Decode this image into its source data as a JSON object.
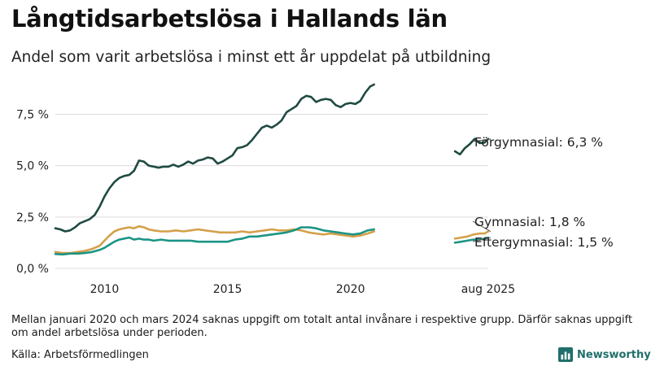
{
  "title": "Långtidsarbetslösa i Hallands län",
  "subtitle": "Andel som varit arbetslösa i minst ett år uppdelat på utbildning",
  "note": "Mellan januari 2020 och mars 2024 saknas uppgift om totalt antal invånare i respektive grupp. Därför saknas uppgift om andel arbetslösa under perioden.",
  "source": "Källa: Arbetsförmedlingen",
  "brand": {
    "name": "Newsworthy",
    "icon": "newsworthy-bar-chart-logo-icon",
    "color": "#1f6f6a"
  },
  "chart_data": {
    "type": "line",
    "ylim": [
      0,
      9.5
    ],
    "xlim": [
      2008.0,
      2026.0
    ],
    "grid": true,
    "y_ticks": [
      {
        "value": 0,
        "label": "0,0 %"
      },
      {
        "value": 2.5,
        "label": "2,5 %"
      },
      {
        "value": 5,
        "label": "5,0 %"
      },
      {
        "value": 7.5,
        "label": "7,5 %"
      }
    ],
    "x_ticks": [
      {
        "value": 2010,
        "label": "2010"
      },
      {
        "value": 2015,
        "label": "2015"
      },
      {
        "value": 2020,
        "label": "2020"
      },
      {
        "value": 2025.6,
        "label": "aug 2025"
      }
    ],
    "series": [
      {
        "name": "Förgymnasial",
        "end_label": "Förgymnasial: 6,3 %",
        "color": "#1f4a42",
        "segments": [
          [
            [
              2008.0,
              1.95
            ],
            [
              2008.2,
              1.9
            ],
            [
              2008.4,
              1.8
            ],
            [
              2008.6,
              1.85
            ],
            [
              2008.8,
              2.0
            ],
            [
              2009.0,
              2.2
            ],
            [
              2009.2,
              2.3
            ],
            [
              2009.4,
              2.4
            ],
            [
              2009.6,
              2.6
            ],
            [
              2009.8,
              3.0
            ],
            [
              2010.0,
              3.5
            ],
            [
              2010.2,
              3.9
            ],
            [
              2010.4,
              4.2
            ],
            [
              2010.6,
              4.4
            ],
            [
              2010.8,
              4.5
            ],
            [
              2011.0,
              4.55
            ],
            [
              2011.2,
              4.75
            ],
            [
              2011.4,
              5.25
            ],
            [
              2011.6,
              5.2
            ],
            [
              2011.8,
              5.0
            ],
            [
              2012.0,
              4.95
            ],
            [
              2012.2,
              4.9
            ],
            [
              2012.4,
              4.95
            ],
            [
              2012.6,
              4.95
            ],
            [
              2012.8,
              5.05
            ],
            [
              2013.0,
              4.95
            ],
            [
              2013.2,
              5.05
            ],
            [
              2013.4,
              5.2
            ],
            [
              2013.6,
              5.1
            ],
            [
              2013.8,
              5.25
            ],
            [
              2014.0,
              5.3
            ],
            [
              2014.2,
              5.4
            ],
            [
              2014.4,
              5.35
            ],
            [
              2014.6,
              5.1
            ],
            [
              2014.8,
              5.2
            ],
            [
              2015.0,
              5.35
            ],
            [
              2015.2,
              5.5
            ],
            [
              2015.4,
              5.85
            ],
            [
              2015.6,
              5.9
            ],
            [
              2015.8,
              6.0
            ],
            [
              2016.0,
              6.25
            ],
            [
              2016.2,
              6.55
            ],
            [
              2016.4,
              6.85
            ],
            [
              2016.6,
              6.95
            ],
            [
              2016.8,
              6.85
            ],
            [
              2017.0,
              7.0
            ],
            [
              2017.2,
              7.2
            ],
            [
              2017.4,
              7.6
            ],
            [
              2017.6,
              7.75
            ],
            [
              2017.8,
              7.9
            ],
            [
              2018.0,
              8.25
            ],
            [
              2018.2,
              8.4
            ],
            [
              2018.4,
              8.35
            ],
            [
              2018.6,
              8.1
            ],
            [
              2018.8,
              8.2
            ],
            [
              2019.0,
              8.25
            ],
            [
              2019.2,
              8.2
            ],
            [
              2019.4,
              7.95
            ],
            [
              2019.6,
              7.85
            ],
            [
              2019.8,
              8.0
            ],
            [
              2020.0,
              8.05
            ],
            [
              2020.2,
              8.0
            ],
            [
              2020.4,
              8.15
            ],
            [
              2020.6,
              8.55
            ],
            [
              2020.8,
              8.85
            ],
            [
              2020.96,
              8.95
            ]
          ],
          [
            [
              2024.25,
              5.7
            ],
            [
              2024.45,
              5.55
            ],
            [
              2024.65,
              5.85
            ],
            [
              2024.85,
              6.05
            ],
            [
              2025.05,
              6.3
            ],
            [
              2025.25,
              6.1
            ],
            [
              2025.45,
              6.12
            ],
            [
              2025.6,
              6.3
            ]
          ]
        ]
      },
      {
        "name": "Gymnasial",
        "end_label": "Gymnasial: 1,8 %",
        "color": "#d4a04a",
        "segments": [
          [
            [
              2008.0,
              0.8
            ],
            [
              2008.3,
              0.75
            ],
            [
              2008.6,
              0.75
            ],
            [
              2008.9,
              0.8
            ],
            [
              2009.2,
              0.85
            ],
            [
              2009.5,
              0.95
            ],
            [
              2009.8,
              1.1
            ],
            [
              2010.0,
              1.35
            ],
            [
              2010.2,
              1.6
            ],
            [
              2010.4,
              1.8
            ],
            [
              2010.6,
              1.9
            ],
            [
              2010.8,
              1.95
            ],
            [
              2011.0,
              2.0
            ],
            [
              2011.2,
              1.95
            ],
            [
              2011.4,
              2.05
            ],
            [
              2011.6,
              2.0
            ],
            [
              2011.8,
              1.9
            ],
            [
              2012.0,
              1.85
            ],
            [
              2012.3,
              1.8
            ],
            [
              2012.6,
              1.8
            ],
            [
              2012.9,
              1.85
            ],
            [
              2013.2,
              1.8
            ],
            [
              2013.5,
              1.85
            ],
            [
              2013.8,
              1.9
            ],
            [
              2014.1,
              1.85
            ],
            [
              2014.4,
              1.8
            ],
            [
              2014.7,
              1.75
            ],
            [
              2015.0,
              1.75
            ],
            [
              2015.3,
              1.75
            ],
            [
              2015.6,
              1.8
            ],
            [
              2015.9,
              1.75
            ],
            [
              2016.2,
              1.8
            ],
            [
              2016.5,
              1.85
            ],
            [
              2016.8,
              1.9
            ],
            [
              2017.1,
              1.85
            ],
            [
              2017.4,
              1.85
            ],
            [
              2017.7,
              1.9
            ],
            [
              2018.0,
              1.85
            ],
            [
              2018.3,
              1.75
            ],
            [
              2018.6,
              1.7
            ],
            [
              2018.9,
              1.65
            ],
            [
              2019.2,
              1.7
            ],
            [
              2019.5,
              1.65
            ],
            [
              2019.8,
              1.6
            ],
            [
              2020.1,
              1.55
            ],
            [
              2020.4,
              1.6
            ],
            [
              2020.7,
              1.7
            ],
            [
              2020.96,
              1.8
            ]
          ],
          [
            [
              2024.25,
              1.45
            ],
            [
              2024.5,
              1.5
            ],
            [
              2024.75,
              1.55
            ],
            [
              2025.0,
              1.65
            ],
            [
              2025.25,
              1.7
            ],
            [
              2025.45,
              1.7
            ],
            [
              2025.6,
              1.8
            ]
          ]
        ]
      },
      {
        "name": "Eftergymnasial",
        "end_label": "Eftergymnasial: 1,5 %",
        "color": "#1b9485",
        "segments": [
          [
            [
              2008.0,
              0.7
            ],
            [
              2008.3,
              0.68
            ],
            [
              2008.6,
              0.72
            ],
            [
              2008.9,
              0.72
            ],
            [
              2009.2,
              0.75
            ],
            [
              2009.5,
              0.8
            ],
            [
              2009.8,
              0.9
            ],
            [
              2010.0,
              1.0
            ],
            [
              2010.2,
              1.15
            ],
            [
              2010.4,
              1.3
            ],
            [
              2010.6,
              1.4
            ],
            [
              2010.8,
              1.45
            ],
            [
              2011.0,
              1.5
            ],
            [
              2011.2,
              1.4
            ],
            [
              2011.4,
              1.45
            ],
            [
              2011.6,
              1.4
            ],
            [
              2011.8,
              1.4
            ],
            [
              2012.0,
              1.35
            ],
            [
              2012.3,
              1.4
            ],
            [
              2012.6,
              1.35
            ],
            [
              2012.9,
              1.35
            ],
            [
              2013.2,
              1.35
            ],
            [
              2013.5,
              1.35
            ],
            [
              2013.8,
              1.3
            ],
            [
              2014.1,
              1.3
            ],
            [
              2014.4,
              1.3
            ],
            [
              2014.7,
              1.3
            ],
            [
              2015.0,
              1.3
            ],
            [
              2015.3,
              1.4
            ],
            [
              2015.6,
              1.45
            ],
            [
              2015.9,
              1.55
            ],
            [
              2016.2,
              1.55
            ],
            [
              2016.5,
              1.6
            ],
            [
              2016.8,
              1.65
            ],
            [
              2017.1,
              1.7
            ],
            [
              2017.4,
              1.75
            ],
            [
              2017.7,
              1.85
            ],
            [
              2018.0,
              2.0
            ],
            [
              2018.3,
              2.0
            ],
            [
              2018.6,
              1.95
            ],
            [
              2018.9,
              1.85
            ],
            [
              2019.2,
              1.8
            ],
            [
              2019.5,
              1.75
            ],
            [
              2019.8,
              1.7
            ],
            [
              2020.1,
              1.65
            ],
            [
              2020.4,
              1.7
            ],
            [
              2020.7,
              1.85
            ],
            [
              2020.96,
              1.9
            ]
          ],
          [
            [
              2024.25,
              1.25
            ],
            [
              2024.5,
              1.3
            ],
            [
              2024.75,
              1.35
            ],
            [
              2025.0,
              1.4
            ],
            [
              2025.25,
              1.4
            ],
            [
              2025.45,
              1.45
            ],
            [
              2025.6,
              1.5
            ]
          ]
        ]
      }
    ]
  }
}
